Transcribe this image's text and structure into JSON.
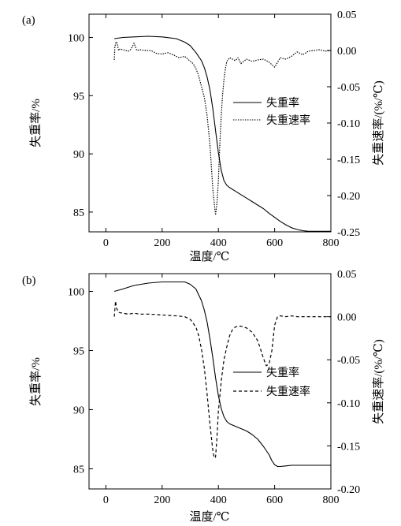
{
  "chart_data": [
    {
      "type": "line",
      "panel_label": "(a)",
      "xlabel": "温度/℃",
      "ylabel_left": "失重率/%",
      "ylabel_right": "失重速率/(%/℃)",
      "xlim": [
        -60,
        800
      ],
      "ylim_left": [
        83.3,
        102.0
      ],
      "ylim_right": [
        -0.25,
        0.05
      ],
      "x_ticks": [
        0,
        200,
        400,
        600,
        800
      ],
      "y_left_ticks": [
        85,
        90,
        95,
        100
      ],
      "y_right_ticks": [
        0.05,
        0.0,
        -0.05,
        -0.1,
        -0.15,
        -0.2,
        -0.25
      ],
      "y_right_tick_labels": [
        "0.05",
        "0.00",
        "-0.05",
        "-0.10",
        "-0.15",
        "-0.20",
        "-0.25"
      ],
      "grid": false,
      "legend_position": "right-middle",
      "series": [
        {
          "name": "失重率",
          "axis": "left",
          "style": "solid",
          "x": [
            30,
            60,
            100,
            150,
            200,
            250,
            280,
            300,
            320,
            340,
            350,
            360,
            370,
            380,
            390,
            400,
            410,
            420,
            430,
            440,
            460,
            480,
            500,
            520,
            540,
            560,
            580,
            600,
            620,
            640,
            660,
            680,
            700,
            720,
            740,
            760,
            780,
            800
          ],
          "values": [
            99.9,
            100.0,
            100.05,
            100.1,
            100.05,
            99.9,
            99.6,
            99.3,
            98.7,
            98.0,
            97.4,
            96.6,
            95.5,
            93.9,
            92.0,
            90.1,
            88.6,
            87.7,
            87.3,
            87.1,
            86.8,
            86.5,
            86.2,
            85.9,
            85.6,
            85.3,
            84.9,
            84.55,
            84.2,
            83.9,
            83.65,
            83.5,
            83.4,
            83.35,
            83.35,
            83.35,
            83.35,
            83.35
          ]
        },
        {
          "name": "失重速率",
          "axis": "right",
          "style": "dotted",
          "x": [
            30,
            32,
            36,
            40,
            45,
            50,
            60,
            70,
            80,
            90,
            100,
            110,
            120,
            140,
            160,
            180,
            200,
            220,
            240,
            260,
            280,
            300,
            310,
            320,
            330,
            340,
            350,
            360,
            365,
            370,
            375,
            380,
            385,
            390,
            395,
            400,
            405,
            410,
            415,
            420,
            425,
            430,
            440,
            450,
            460,
            470,
            480,
            500,
            520,
            540,
            560,
            580,
            600,
            620,
            640,
            660,
            680,
            700,
            720,
            740,
            760,
            780,
            800
          ],
          "values": [
            -0.013,
            0.005,
            0.012,
            0.01,
            0.0,
            0.002,
            0.001,
            0.0,
            -0.001,
            0.002,
            0.01,
            0.0,
            0.001,
            0.0,
            0.0,
            -0.004,
            -0.005,
            -0.003,
            -0.006,
            -0.01,
            -0.008,
            -0.015,
            -0.018,
            -0.025,
            -0.035,
            -0.05,
            -0.065,
            -0.09,
            -0.11,
            -0.13,
            -0.16,
            -0.19,
            -0.21,
            -0.227,
            -0.21,
            -0.18,
            -0.13,
            -0.09,
            -0.06,
            -0.04,
            -0.025,
            -0.015,
            -0.01,
            -0.012,
            -0.014,
            -0.01,
            -0.018,
            -0.012,
            -0.015,
            -0.013,
            -0.012,
            -0.016,
            -0.023,
            -0.01,
            -0.012,
            -0.008,
            -0.002,
            -0.006,
            -0.001,
            0.0,
            0.001,
            -0.001,
            0.0
          ]
        }
      ]
    },
    {
      "type": "line",
      "panel_label": "(b)",
      "xlabel": "温度/℃",
      "ylabel_left": "失重率/%",
      "ylabel_right": "失重速率/(%/℃)",
      "xlim": [
        -60,
        800
      ],
      "ylim_left": [
        83.3,
        101.5
      ],
      "ylim_right": [
        -0.2,
        0.05
      ],
      "x_ticks": [
        0,
        200,
        400,
        600,
        800
      ],
      "y_left_ticks": [
        85,
        90,
        95,
        100
      ],
      "y_right_ticks": [
        0.05,
        0.0,
        -0.05,
        -0.1,
        -0.15,
        -0.2
      ],
      "y_right_tick_labels": [
        "0.05",
        "0.00",
        "-0.05",
        "-0.10",
        "-0.15",
        "-0.20"
      ],
      "grid": false,
      "legend_position": "right-middle",
      "series": [
        {
          "name": "失重率",
          "axis": "left",
          "style": "solid",
          "x": [
            30,
            60,
            100,
            150,
            200,
            250,
            280,
            300,
            320,
            340,
            350,
            360,
            370,
            380,
            390,
            400,
            410,
            420,
            430,
            440,
            460,
            480,
            500,
            520,
            540,
            560,
            580,
            590,
            600,
            610,
            620,
            640,
            660,
            680,
            700,
            720,
            740,
            760,
            780,
            800
          ],
          "values": [
            100.0,
            100.2,
            100.5,
            100.7,
            100.8,
            100.8,
            100.8,
            100.6,
            100.2,
            99.2,
            98.4,
            97.4,
            96.0,
            94.4,
            92.7,
            91.2,
            90.1,
            89.4,
            89.0,
            88.8,
            88.6,
            88.4,
            88.2,
            87.9,
            87.5,
            86.9,
            86.2,
            85.7,
            85.35,
            85.2,
            85.2,
            85.25,
            85.3,
            85.3,
            85.3,
            85.3,
            85.3,
            85.3,
            85.3,
            85.3
          ]
        },
        {
          "name": "失重速率",
          "axis": "right",
          "style": "dashed",
          "x": [
            30,
            34,
            38,
            45,
            60,
            80,
            100,
            120,
            150,
            200,
            250,
            280,
            300,
            320,
            330,
            340,
            350,
            360,
            370,
            380,
            385,
            390,
            395,
            400,
            410,
            420,
            430,
            440,
            450,
            460,
            470,
            480,
            500,
            520,
            540,
            550,
            560,
            570,
            580,
            590,
            600,
            610,
            620,
            640,
            660,
            680,
            700,
            720,
            740,
            760,
            780,
            800
          ],
          "values": [
            0.0,
            0.018,
            0.01,
            0.005,
            0.004,
            0.003,
            0.004,
            0.003,
            0.003,
            0.002,
            0.001,
            0.0,
            -0.003,
            -0.012,
            -0.022,
            -0.038,
            -0.06,
            -0.09,
            -0.125,
            -0.155,
            -0.164,
            -0.163,
            -0.14,
            -0.11,
            -0.075,
            -0.05,
            -0.035,
            -0.022,
            -0.015,
            -0.012,
            -0.011,
            -0.011,
            -0.013,
            -0.018,
            -0.028,
            -0.038,
            -0.048,
            -0.057,
            -0.055,
            -0.04,
            -0.01,
            0.0,
            0.001,
            0.0,
            0.001,
            0.0,
            0.0,
            0.0,
            0.0,
            0.0,
            0.0,
            0.0
          ]
        }
      ]
    }
  ]
}
